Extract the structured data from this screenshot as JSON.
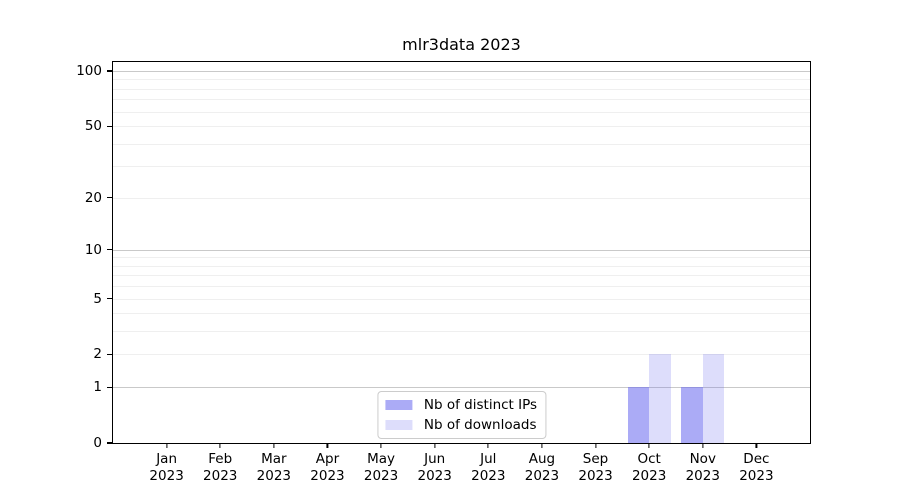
{
  "figure": {
    "background": "#ffffff",
    "text_color": "#000000",
    "spine_color": "#000000"
  },
  "chart_data": {
    "type": "bar",
    "title": "mlr3data 2023",
    "categories": [
      "Jan 2023",
      "Feb 2023",
      "Mar 2023",
      "Apr 2023",
      "May 2023",
      "Jun 2023",
      "Jul 2023",
      "Aug 2023",
      "Sep 2023",
      "Oct 2023",
      "Nov 2023",
      "Dec 2023"
    ],
    "series": [
      {
        "name": "Nb of distinct IPs",
        "values": [
          0,
          0,
          0,
          0,
          0,
          0,
          0,
          0,
          0,
          1,
          1,
          0
        ],
        "fill": "rgba(102,102,238,0.55)",
        "color_on_white": "#aaaaf2"
      },
      {
        "name": "Nb of downloads",
        "values": [
          0,
          0,
          0,
          0,
          0,
          0,
          0,
          0,
          0,
          2,
          2,
          0
        ],
        "fill": "rgba(102,102,238,0.22)",
        "color_on_white": "#dcdcf8"
      }
    ],
    "xlabel": "",
    "ylabel": "",
    "yscale": "log1p",
    "yticks": [
      0,
      1,
      2,
      5,
      10,
      20,
      50,
      100
    ],
    "ylim": [
      0,
      112
    ],
    "x_slots": 13,
    "bar_width_fraction": 0.4,
    "grid": {
      "major_lines": [
        1,
        10,
        100
      ],
      "minor_lines": [
        2,
        3,
        4,
        5,
        6,
        7,
        8,
        9,
        20,
        30,
        40,
        50,
        60,
        70,
        80,
        90
      ],
      "major_color": "#c9c9c9",
      "minor_color": "#efefef"
    },
    "legend": {
      "position": "lower center",
      "border_color": "#cccccc",
      "background": "#ffffff"
    }
  }
}
